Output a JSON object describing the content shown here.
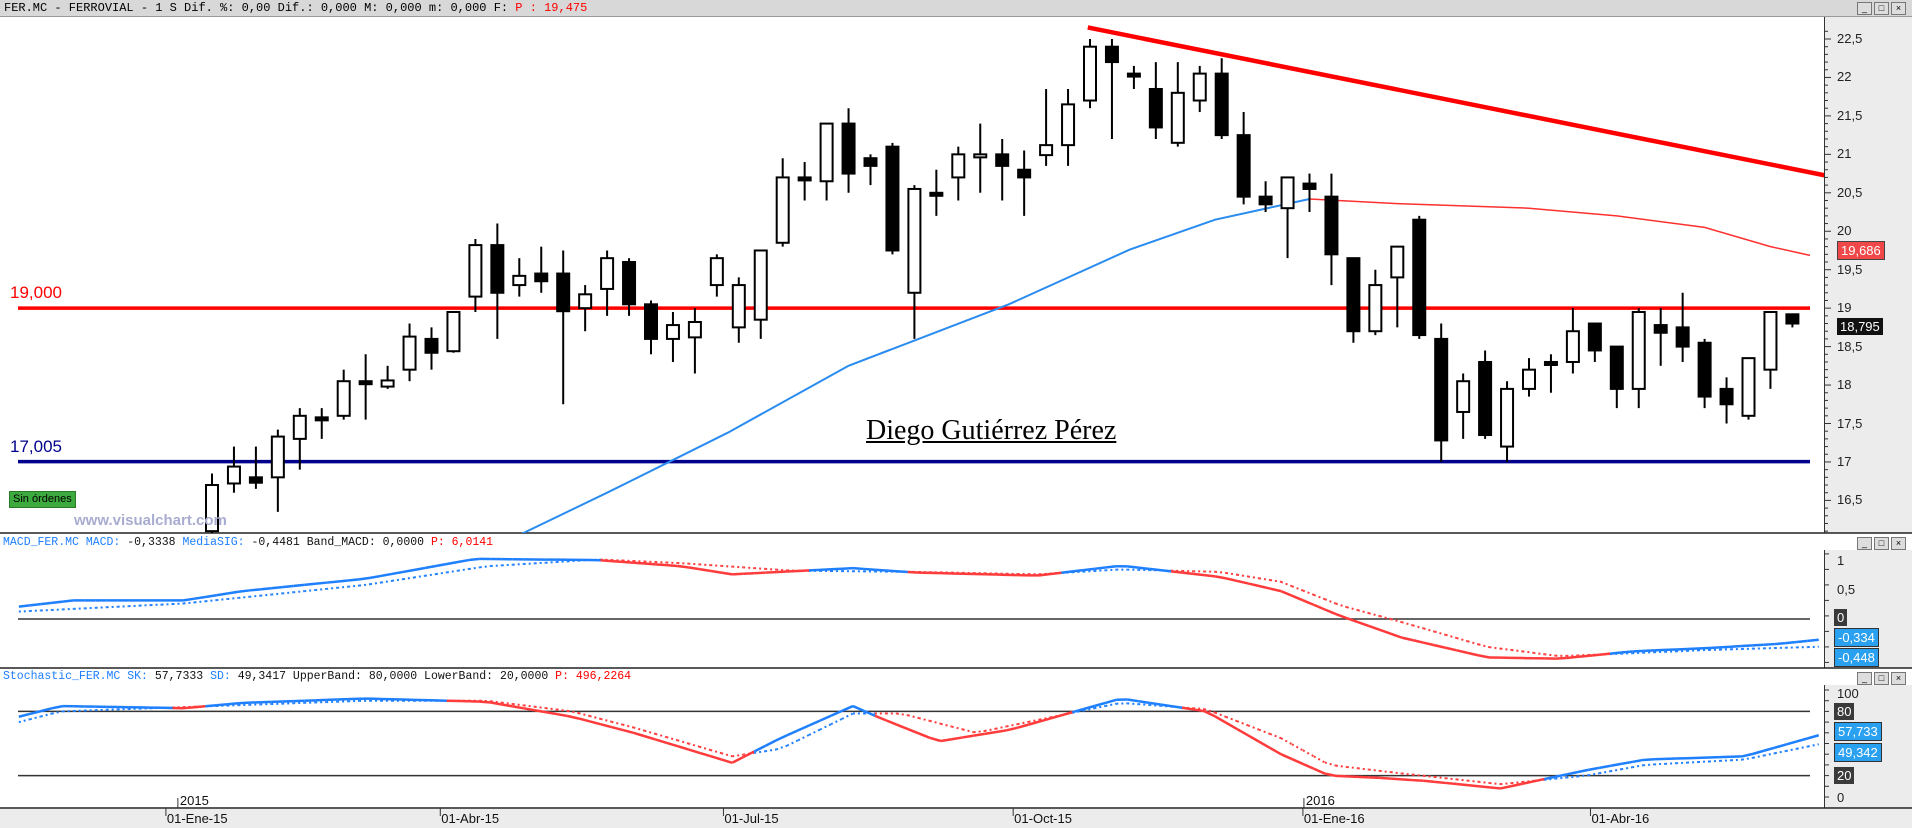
{
  "header": {
    "symbol": "FER.MC - FERROVIAL -",
    "info": " 1 S Dif. %: 0,00 Dif.: 0,000 M: 0,000 m: 0,000 F: ",
    "price": "P : 19,475"
  },
  "main": {
    "levels": [
      {
        "label": "19,000",
        "value": 19.0,
        "color": "#ff0000"
      },
      {
        "label": "17,005",
        "value": 17.005,
        "color": "#00008b"
      }
    ],
    "author": "Diego Gutiérrez Pérez",
    "watermark": "www.visualchart.com",
    "orders_badge": "Sin órdenes",
    "axis_ticks": [
      "22,5",
      "22",
      "21,5",
      "21",
      "20,5",
      "20",
      "19,5",
      "19",
      "18,5",
      "18",
      "17,5",
      "17",
      "16,5"
    ],
    "ma_tag": "19,686",
    "last_tag": "18,795"
  },
  "macd": {
    "name": "MACD_FER.MC",
    "macd_label": "MACD:",
    "macd_value": "-0,3338",
    "sig_label": "MediaSIG:",
    "sig_value": "-0,4481",
    "band": "Band_MACD: 0,0000",
    "p": "P: 6,0141",
    "axis_ticks": [
      "1",
      "0,5"
    ],
    "zero_tag": "0",
    "macd_tag": "-0,334",
    "sig_tag": "-0,448"
  },
  "stoch": {
    "name": "Stochastic_FER.MC",
    "sk_label": "SK:",
    "sk_value": "57,7333",
    "sd_label": "SD:",
    "sd_value": "49,3417",
    "bands": "UpperBand: 80,0000 LowerBand: 20,0000",
    "p": "P: 496,2264",
    "axis_ticks": [
      "100",
      "0"
    ],
    "upper_tag": "80",
    "lower_tag": "20",
    "sk_tag": "57,733",
    "sd_tag": "49,342"
  },
  "xaxis": {
    "years": [
      {
        "label": "2015",
        "week": -1.6
      },
      {
        "label": "2016",
        "week": 49.7
      }
    ],
    "dates": [
      {
        "label": "01-Ene-15",
        "week": -2.1
      },
      {
        "label": "01-Abr-15",
        "week": 10.4
      },
      {
        "label": "01-Jul-15",
        "week": 23.3
      },
      {
        "label": "01-Oct-15",
        "week": 36.5
      },
      {
        "label": "01-Ene-16",
        "week": 49.7
      },
      {
        "label": "01-Abr-16",
        "week": 62.8
      }
    ]
  },
  "chart_data": {
    "type": "candlestick",
    "title": "FER.MC - FERROVIAL - weekly",
    "ylim": [
      16.07,
      22.7
    ],
    "candles_ohlc": [
      [
        16.1,
        16.85,
        16.0,
        16.7
      ],
      [
        16.72,
        17.2,
        16.6,
        16.94
      ],
      [
        16.8,
        17.2,
        16.65,
        16.73
      ],
      [
        16.8,
        17.42,
        16.35,
        17.33
      ],
      [
        17.3,
        17.7,
        16.9,
        17.6
      ],
      [
        17.58,
        17.7,
        17.3,
        17.55
      ],
      [
        17.6,
        18.2,
        17.55,
        18.05
      ],
      [
        18.05,
        18.4,
        17.55,
        18.04
      ],
      [
        17.98,
        18.25,
        17.95,
        18.06
      ],
      [
        18.2,
        18.8,
        18.05,
        18.63
      ],
      [
        18.6,
        18.75,
        18.2,
        18.42
      ],
      [
        18.44,
        18.95,
        18.42,
        18.95
      ],
      [
        19.15,
        19.9,
        18.95,
        19.82
      ],
      [
        19.82,
        20.1,
        18.6,
        19.2
      ],
      [
        19.3,
        19.65,
        19.15,
        19.42
      ],
      [
        19.45,
        19.8,
        19.2,
        19.35
      ],
      [
        19.45,
        19.75,
        17.75,
        18.96
      ],
      [
        19.0,
        19.3,
        18.7,
        19.18
      ],
      [
        19.25,
        19.75,
        18.9,
        19.65
      ],
      [
        19.6,
        19.65,
        18.9,
        19.05
      ],
      [
        19.05,
        19.1,
        18.4,
        18.6
      ],
      [
        18.6,
        18.95,
        18.3,
        18.78
      ],
      [
        18.62,
        19.0,
        18.15,
        18.82
      ],
      [
        19.3,
        19.7,
        19.15,
        19.65
      ],
      [
        18.75,
        19.4,
        18.55,
        19.3
      ],
      [
        18.85,
        19.75,
        18.6,
        19.75
      ],
      [
        19.85,
        20.95,
        19.8,
        20.7
      ],
      [
        20.7,
        20.9,
        20.4,
        20.69
      ],
      [
        20.65,
        21.4,
        20.4,
        21.4
      ],
      [
        21.4,
        21.6,
        20.5,
        20.75
      ],
      [
        20.95,
        21.0,
        20.6,
        20.85
      ],
      [
        21.1,
        21.15,
        19.7,
        19.75
      ],
      [
        19.2,
        20.6,
        18.6,
        20.55
      ],
      [
        20.5,
        20.8,
        20.2,
        20.49
      ],
      [
        20.7,
        21.1,
        20.4,
        21.0
      ],
      [
        20.98,
        21.4,
        20.5,
        21.0
      ],
      [
        21.0,
        21.2,
        20.4,
        20.85
      ],
      [
        20.8,
        21.05,
        20.2,
        20.7
      ],
      [
        20.99,
        21.85,
        20.85,
        21.12
      ],
      [
        21.12,
        21.85,
        20.85,
        21.65
      ],
      [
        21.7,
        22.5,
        21.6,
        22.4
      ],
      [
        22.4,
        22.5,
        21.2,
        22.2
      ],
      [
        22.05,
        22.15,
        21.85,
        22.04
      ],
      [
        21.85,
        22.2,
        21.2,
        21.35
      ],
      [
        21.15,
        22.2,
        21.1,
        21.8
      ],
      [
        21.7,
        22.15,
        21.55,
        22.05
      ],
      [
        22.05,
        22.25,
        21.2,
        21.25
      ],
      [
        21.25,
        21.55,
        20.35,
        20.45
      ],
      [
        20.45,
        20.65,
        20.25,
        20.35
      ],
      [
        20.3,
        20.7,
        19.65,
        20.7
      ],
      [
        20.62,
        20.75,
        20.25,
        20.55
      ],
      [
        20.45,
        20.75,
        19.3,
        19.7
      ],
      [
        19.65,
        19.65,
        18.55,
        18.7
      ],
      [
        18.7,
        19.5,
        18.65,
        19.3
      ],
      [
        19.4,
        19.8,
        18.75,
        19.8
      ],
      [
        20.15,
        20.2,
        18.6,
        18.65
      ],
      [
        18.6,
        18.8,
        17.0,
        17.28
      ],
      [
        17.65,
        18.15,
        17.3,
        18.05
      ],
      [
        18.3,
        18.45,
        17.3,
        17.35
      ],
      [
        17.2,
        18.05,
        17.0,
        17.95
      ],
      [
        17.95,
        18.35,
        17.85,
        18.2
      ],
      [
        18.3,
        18.4,
        17.9,
        18.29
      ],
      [
        18.3,
        19.0,
        18.15,
        18.7
      ],
      [
        18.8,
        18.8,
        18.3,
        18.45
      ],
      [
        18.5,
        18.5,
        17.7,
        17.95
      ],
      [
        17.95,
        19.0,
        17.7,
        18.95
      ],
      [
        18.78,
        19.0,
        18.25,
        18.68
      ],
      [
        18.75,
        19.2,
        18.3,
        18.5
      ],
      [
        18.55,
        18.6,
        17.7,
        17.85
      ],
      [
        17.95,
        18.1,
        17.5,
        17.75
      ],
      [
        17.6,
        18.35,
        17.55,
        18.35
      ],
      [
        18.2,
        18.95,
        17.95,
        18.95
      ],
      [
        18.92,
        18.9,
        18.75,
        18.8
      ]
    ],
    "moving_average": [
      [
        14,
        16.05
      ],
      [
        18,
        16.6
      ],
      [
        23.5,
        17.38
      ],
      [
        29,
        18.25
      ],
      [
        36.3,
        19.05
      ],
      [
        41.8,
        19.76
      ],
      [
        45.7,
        20.15
      ],
      [
        50,
        20.42
      ],
      [
        54,
        20.36
      ],
      [
        60,
        20.3
      ],
      [
        64,
        20.2
      ],
      [
        68,
        20.05
      ],
      [
        71,
        19.8
      ],
      [
        72.8,
        19.686
      ]
    ],
    "trendline": [
      [
        39.9,
        22.65
      ],
      [
        74.3,
        20.68
      ]
    ],
    "macd": {
      "ylim": [
        -0.75,
        1.2
      ],
      "macd": [
        [
          -8.8,
          0.2
        ],
        [
          -6.3,
          0.3
        ],
        [
          -1.3,
          0.3
        ],
        [
          1.4,
          0.45
        ],
        [
          7,
          0.65
        ],
        [
          12,
          0.97
        ],
        [
          17.6,
          0.95
        ],
        [
          21.4,
          0.85
        ],
        [
          23.7,
          0.72
        ],
        [
          29.2,
          0.82
        ],
        [
          32,
          0.75
        ],
        [
          37.6,
          0.7
        ],
        [
          41.4,
          0.86
        ],
        [
          45.9,
          0.68
        ],
        [
          48.7,
          0.45
        ],
        [
          51.4,
          0.05
        ],
        [
          54.2,
          -0.3
        ],
        [
          58.1,
          -0.62
        ],
        [
          61.4,
          -0.64
        ],
        [
          64.8,
          -0.52
        ],
        [
          68.1,
          -0.47
        ],
        [
          71.4,
          -0.4
        ],
        [
          73.2,
          -0.334
        ]
      ],
      "signal": [
        [
          -8.8,
          0.12
        ],
        [
          -1.3,
          0.25
        ],
        [
          7,
          0.55
        ],
        [
          12.5,
          0.85
        ],
        [
          17.6,
          0.96
        ],
        [
          21.4,
          0.9
        ],
        [
          26.4,
          0.78
        ],
        [
          32,
          0.76
        ],
        [
          37.6,
          0.72
        ],
        [
          41.4,
          0.8
        ],
        [
          45.9,
          0.76
        ],
        [
          48.7,
          0.6
        ],
        [
          51.4,
          0.22
        ],
        [
          54.2,
          -0.05
        ],
        [
          58.1,
          -0.45
        ],
        [
          61.4,
          -0.6
        ],
        [
          64.8,
          -0.55
        ],
        [
          68.1,
          -0.5
        ],
        [
          73.2,
          -0.448
        ]
      ]
    },
    "stochastic": {
      "ylim": [
        0,
        100
      ],
      "sk": [
        [
          -8.8,
          75
        ],
        [
          -6.9,
          85
        ],
        [
          -1.3,
          83
        ],
        [
          1.4,
          88
        ],
        [
          7,
          92
        ],
        [
          12.5,
          89
        ],
        [
          16.4,
          75
        ],
        [
          19.2,
          60
        ],
        [
          23.7,
          32
        ],
        [
          25.9,
          55
        ],
        [
          29.2,
          85
        ],
        [
          30.3,
          75
        ],
        [
          33.1,
          52
        ],
        [
          36.4,
          63
        ],
        [
          41.4,
          92
        ],
        [
          45.3,
          80
        ],
        [
          48.7,
          40
        ],
        [
          50.9,
          20
        ],
        [
          53.1,
          18
        ],
        [
          55.3,
          15
        ],
        [
          58.7,
          8
        ],
        [
          60.3,
          15
        ],
        [
          62.6,
          25
        ],
        [
          65.3,
          35
        ],
        [
          69.8,
          38
        ],
        [
          73.2,
          57.7
        ]
      ],
      "sd": [
        [
          -8.8,
          70
        ],
        [
          -6.9,
          80
        ],
        [
          -1.3,
          84
        ],
        [
          7,
          90
        ],
        [
          12.5,
          90
        ],
        [
          16.4,
          80
        ],
        [
          19.2,
          65
        ],
        [
          23.7,
          38
        ],
        [
          25.9,
          45
        ],
        [
          29.2,
          78
        ],
        [
          31.4,
          78
        ],
        [
          34.8,
          60
        ],
        [
          41.4,
          88
        ],
        [
          45.3,
          82
        ],
        [
          48.7,
          55
        ],
        [
          50.9,
          30
        ],
        [
          54.2,
          22
        ],
        [
          58.7,
          12
        ],
        [
          62.6,
          20
        ],
        [
          65.3,
          30
        ],
        [
          69.8,
          35
        ],
        [
          73.2,
          49.3
        ]
      ],
      "upper": 80,
      "lower": 20
    }
  }
}
